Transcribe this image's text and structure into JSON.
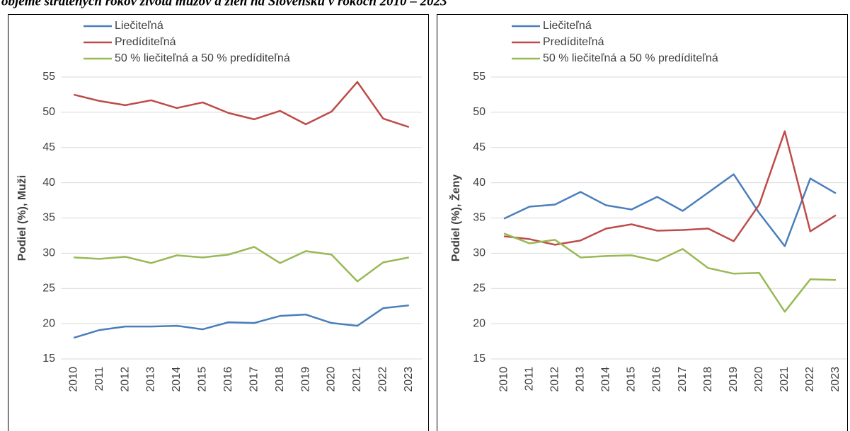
{
  "title": "objeme stratených rokov života mužov a žien na Slovensku v rokoch 2010 – 2023",
  "chart_data": [
    {
      "type": "line",
      "ylabel": "Podiel (%), Muži",
      "categories": [
        "2010",
        "2011",
        "2012",
        "2013",
        "2014",
        "2015",
        "2016",
        "2017",
        "2018",
        "2019",
        "2020",
        "2021",
        "2022",
        "2023"
      ],
      "ylim": [
        15,
        55
      ],
      "yticks": [
        15,
        20,
        25,
        30,
        35,
        40,
        45,
        50,
        55
      ],
      "grid": true,
      "legend": "top-left",
      "series": [
        {
          "name": "Liečiteľná",
          "color": "#4a7ebb",
          "values": [
            18.0,
            19.1,
            19.6,
            19.6,
            19.7,
            19.2,
            20.2,
            20.1,
            21.1,
            21.3,
            20.1,
            19.7,
            22.2,
            22.6
          ]
        },
        {
          "name": "Predíditeľná",
          "color": "#be4b48",
          "values": [
            52.5,
            51.6,
            51.0,
            51.7,
            50.6,
            51.4,
            49.9,
            49.0,
            50.2,
            48.3,
            50.1,
            54.3,
            49.1,
            47.9
          ]
        },
        {
          "name": "50 % liečiteľná a 50 % predíditeľná",
          "color": "#98b954",
          "values": [
            29.4,
            29.2,
            29.5,
            28.6,
            29.7,
            29.4,
            29.8,
            30.9,
            28.6,
            30.3,
            29.8,
            26.0,
            28.7,
            29.4
          ]
        }
      ]
    },
    {
      "type": "line",
      "ylabel": "Podiel (%), Ženy",
      "categories": [
        "2010",
        "2011",
        "2012",
        "2013",
        "2014",
        "2015",
        "2016",
        "2017",
        "2018",
        "2019",
        "2020",
        "2021",
        "2022",
        "2023"
      ],
      "ylim": [
        15,
        55
      ],
      "yticks": [
        15,
        20,
        25,
        30,
        35,
        40,
        45,
        50,
        55
      ],
      "grid": true,
      "legend": "top-left",
      "series": [
        {
          "name": "Liečiteľná",
          "color": "#4a7ebb",
          "values": [
            34.9,
            36.6,
            36.9,
            38.7,
            36.8,
            36.2,
            38.0,
            36.0,
            38.6,
            41.2,
            35.7,
            31.0,
            40.6,
            38.5
          ]
        },
        {
          "name": "Predíditeľná",
          "color": "#be4b48",
          "values": [
            32.4,
            32.0,
            31.2,
            31.8,
            33.5,
            34.1,
            33.2,
            33.3,
            33.5,
            31.7,
            36.9,
            47.3,
            33.1,
            35.4
          ]
        },
        {
          "name": "50 % liečiteľná a 50 % predíditeľná",
          "color": "#98b954",
          "values": [
            32.8,
            31.4,
            31.9,
            29.4,
            29.6,
            29.7,
            28.9,
            30.6,
            27.9,
            27.1,
            27.2,
            21.7,
            26.3,
            26.2
          ]
        }
      ]
    }
  ]
}
